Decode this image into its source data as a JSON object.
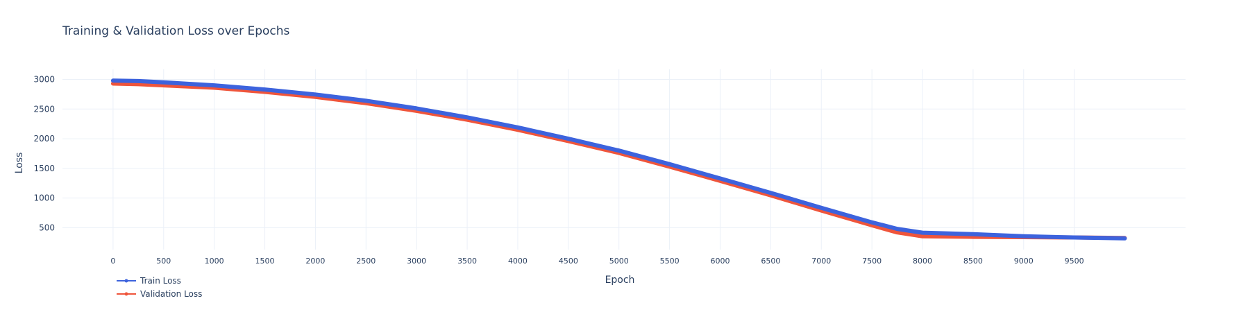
{
  "chart_data": {
    "type": "line",
    "title": "Training & Validation Loss over Epochs",
    "xlabel": "Epoch",
    "ylabel": "Loss",
    "xlim": [
      -500,
      10600
    ],
    "ylim": [
      130,
      3170
    ],
    "grid": true,
    "legend_position": "bottom-left",
    "x_ticks": [
      0,
      500,
      1000,
      1500,
      2000,
      2500,
      3000,
      3500,
      4000,
      4500,
      5000,
      5500,
      6000,
      6500,
      7000,
      7500,
      8000,
      8500,
      9000,
      9500
    ],
    "y_ticks": [
      500,
      1000,
      1500,
      2000,
      2500,
      3000
    ],
    "x": [
      0,
      250,
      500,
      1000,
      1500,
      2000,
      2500,
      3000,
      3500,
      4000,
      4500,
      5000,
      5500,
      6000,
      6500,
      7000,
      7500,
      7750,
      8000,
      8500,
      9000,
      9500,
      9999
    ],
    "series": [
      {
        "name": "Train Loss",
        "color": "#3d63dd",
        "values": [
          2980,
          2972,
          2950,
          2900,
          2830,
          2745,
          2640,
          2510,
          2360,
          2190,
          2000,
          1800,
          1570,
          1330,
          1085,
          835,
          590,
          480,
          415,
          390,
          355,
          335,
          320
        ]
      },
      {
        "name": "Validation Loss",
        "color": "#ef553b",
        "values": [
          2930,
          2920,
          2900,
          2860,
          2790,
          2705,
          2600,
          2470,
          2320,
          2150,
          1960,
          1760,
          1530,
          1290,
          1045,
          790,
          540,
          420,
          355,
          345,
          340,
          335,
          325
        ]
      }
    ]
  }
}
